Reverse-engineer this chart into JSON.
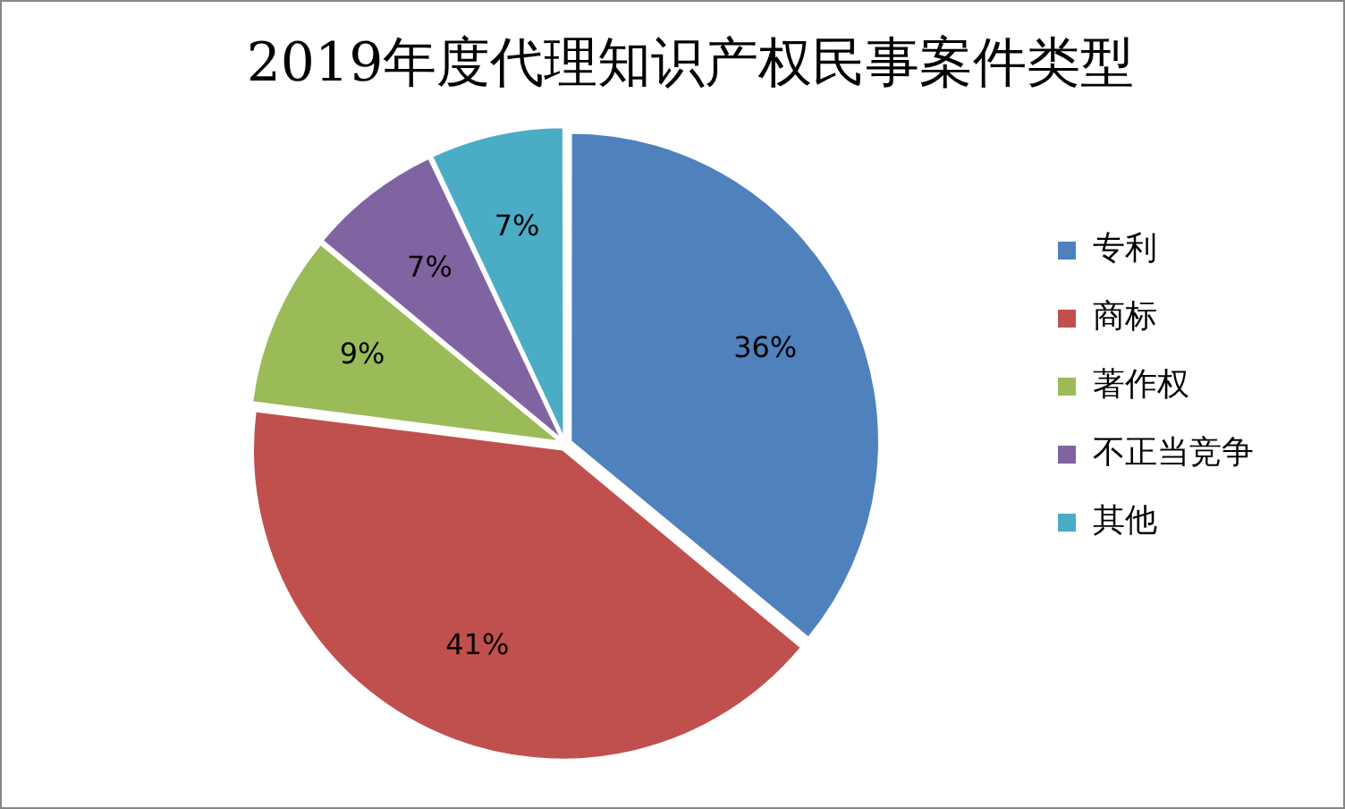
{
  "chart_data": {
    "type": "pie",
    "title": "2019年度代理知识产权民事案件类型",
    "categories": [
      "专利",
      "商标",
      "著作权",
      "不正当竞争",
      "其他"
    ],
    "values": [
      36,
      41,
      9,
      7,
      7
    ],
    "colors": [
      "#4f81bd",
      "#c0504d",
      "#9bbb59",
      "#8064a2",
      "#4bacc6"
    ],
    "value_labels": [
      "36%",
      "41%",
      "9%",
      "7%",
      "7%"
    ],
    "legend": "right"
  }
}
